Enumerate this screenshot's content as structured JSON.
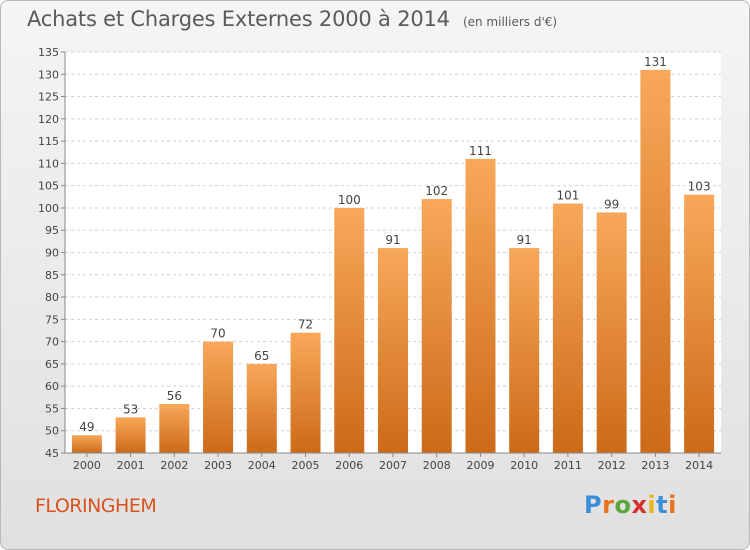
{
  "header": {
    "title": "Achats et Charges Externes 2000 à 2014",
    "subtitle": "(en milliers d'€)"
  },
  "footer": {
    "commune": "FLORINGHEM",
    "logo_text": "Proxiti",
    "logo_colors": [
      "#3a8fd6",
      "#e8731a",
      "#5aa63c",
      "#d6302c",
      "#e8b81a",
      "#3a8fd6",
      "#e8731a"
    ]
  },
  "chart_data": {
    "type": "bar",
    "categories": [
      "2000",
      "2001",
      "2002",
      "2003",
      "2004",
      "2005",
      "2006",
      "2007",
      "2008",
      "2009",
      "2010",
      "2011",
      "2012",
      "2013",
      "2014"
    ],
    "values": [
      49,
      53,
      56,
      70,
      65,
      72,
      100,
      91,
      102,
      111,
      91,
      101,
      99,
      131,
      103
    ],
    "title": "Achats et Charges Externes 2000 à 2014",
    "subtitle": "(en milliers d'€)",
    "xlabel": "",
    "ylabel": "",
    "ylim": [
      45,
      135
    ],
    "yticks": [
      45,
      50,
      55,
      60,
      65,
      70,
      75,
      80,
      85,
      90,
      95,
      100,
      105,
      110,
      115,
      120,
      125,
      130,
      135
    ],
    "grid": "horizontal-dashed",
    "legend": "none",
    "colors": {
      "bar_light": "#f8a85a",
      "bar_dark": "#cc6a18",
      "plot_bg": "#ffffff",
      "grid": "#d0d0d0",
      "text": "#444444"
    }
  }
}
